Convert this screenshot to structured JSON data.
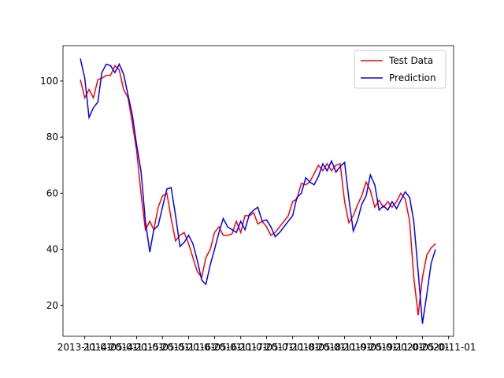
{
  "chart_data": {
    "type": "line",
    "x": [
      "2013-10-01",
      "2013-11-01",
      "2013-12-01",
      "2014-01-01",
      "2014-02-01",
      "2014-03-01",
      "2014-04-01",
      "2014-05-01",
      "2014-06-01",
      "2014-07-01",
      "2014-08-01",
      "2014-09-01",
      "2014-10-01",
      "2014-11-01",
      "2014-12-01",
      "2015-01-01",
      "2015-02-01",
      "2015-03-01",
      "2015-04-01",
      "2015-05-01",
      "2015-06-01",
      "2015-07-01",
      "2015-08-01",
      "2015-09-01",
      "2015-10-01",
      "2015-11-01",
      "2015-12-01",
      "2016-01-01",
      "2016-02-01",
      "2016-03-01",
      "2016-04-01",
      "2016-05-01",
      "2016-06-01",
      "2016-07-01",
      "2016-08-01",
      "2016-09-01",
      "2016-10-01",
      "2016-11-01",
      "2016-12-01",
      "2017-01-01",
      "2017-02-01",
      "2017-03-01",
      "2017-04-01",
      "2017-05-01",
      "2017-06-01",
      "2017-07-01",
      "2017-08-01",
      "2017-09-01",
      "2017-10-01",
      "2017-11-01",
      "2017-12-01",
      "2018-01-01",
      "2018-02-01",
      "2018-03-01",
      "2018-04-01",
      "2018-05-01",
      "2018-06-01",
      "2018-07-01",
      "2018-08-01",
      "2018-09-01",
      "2018-10-01",
      "2018-11-01",
      "2018-12-01",
      "2019-01-01",
      "2019-02-01",
      "2019-03-01",
      "2019-04-01",
      "2019-05-01",
      "2019-06-01",
      "2019-07-01",
      "2019-08-01",
      "2019-09-01",
      "2019-10-01",
      "2019-11-01",
      "2019-12-01",
      "2020-01-01",
      "2020-02-01",
      "2020-03-01",
      "2020-04-01",
      "2020-05-01",
      "2020-06-01",
      "2020-07-01",
      "2020-08-01"
    ],
    "series": [
      {
        "name": "Test Data",
        "color": "#ff0000",
        "values": [
          100.5,
          94,
          97,
          94,
          100.5,
          101,
          102,
          102,
          105.5,
          104,
          97,
          94,
          85,
          75,
          60,
          47,
          50,
          47,
          55,
          59,
          60,
          51,
          43,
          45,
          46,
          42,
          37,
          32,
          30,
          37,
          40,
          46,
          48,
          45,
          45,
          45.5,
          50,
          46,
          52,
          52,
          53,
          49,
          50,
          48,
          45,
          46,
          48,
          50,
          52,
          57,
          58,
          63.5,
          63,
          64,
          67,
          70,
          68,
          70.5,
          68,
          70,
          70.5,
          57,
          49.5,
          52,
          56,
          59,
          64,
          61,
          55,
          57.5,
          55,
          57,
          55,
          57,
          60,
          58,
          50,
          30,
          16.5,
          30,
          38,
          40.5,
          42
        ]
      },
      {
        "name": "Prediction",
        "color": "#0000ff",
        "values": [
          108,
          101,
          87,
          90.5,
          92.5,
          103,
          106,
          105.5,
          103,
          106,
          102.5,
          95,
          88,
          77,
          68,
          50,
          39,
          47,
          48.5,
          55,
          61.5,
          62,
          52,
          41,
          42.5,
          45,
          42,
          36,
          29,
          27.5,
          34.5,
          40,
          46,
          51,
          48,
          47,
          46,
          50,
          47,
          52.5,
          54,
          55,
          50,
          50.5,
          48,
          44.5,
          46,
          48,
          50,
          52,
          58.5,
          60,
          65.5,
          64,
          63,
          66,
          70.5,
          68,
          71.5,
          67.5,
          69.5,
          71,
          58,
          46.5,
          50.5,
          56,
          59,
          66.5,
          63,
          54,
          55.5,
          54,
          57,
          54.5,
          57.5,
          60.5,
          58.5,
          50,
          32,
          13.5,
          24,
          35,
          40
        ]
      }
    ],
    "xlim": [
      "2013-06-01",
      "2020-12-06"
    ],
    "xticks": [
      "2013-11-01",
      "2014-05-01",
      "2014-11-01",
      "2015-05-01",
      "2015-11-01",
      "2016-05-01",
      "2016-11-01",
      "2017-05-01",
      "2017-11-01",
      "2018-05-01",
      "2018-11-01",
      "2019-05-01",
      "2019-11-01",
      "2020-05-01",
      "2020-11-01"
    ],
    "ylim": [
      9,
      112.6
    ],
    "yticks": [
      20,
      40,
      60,
      80,
      100
    ],
    "legend": "upper right"
  }
}
